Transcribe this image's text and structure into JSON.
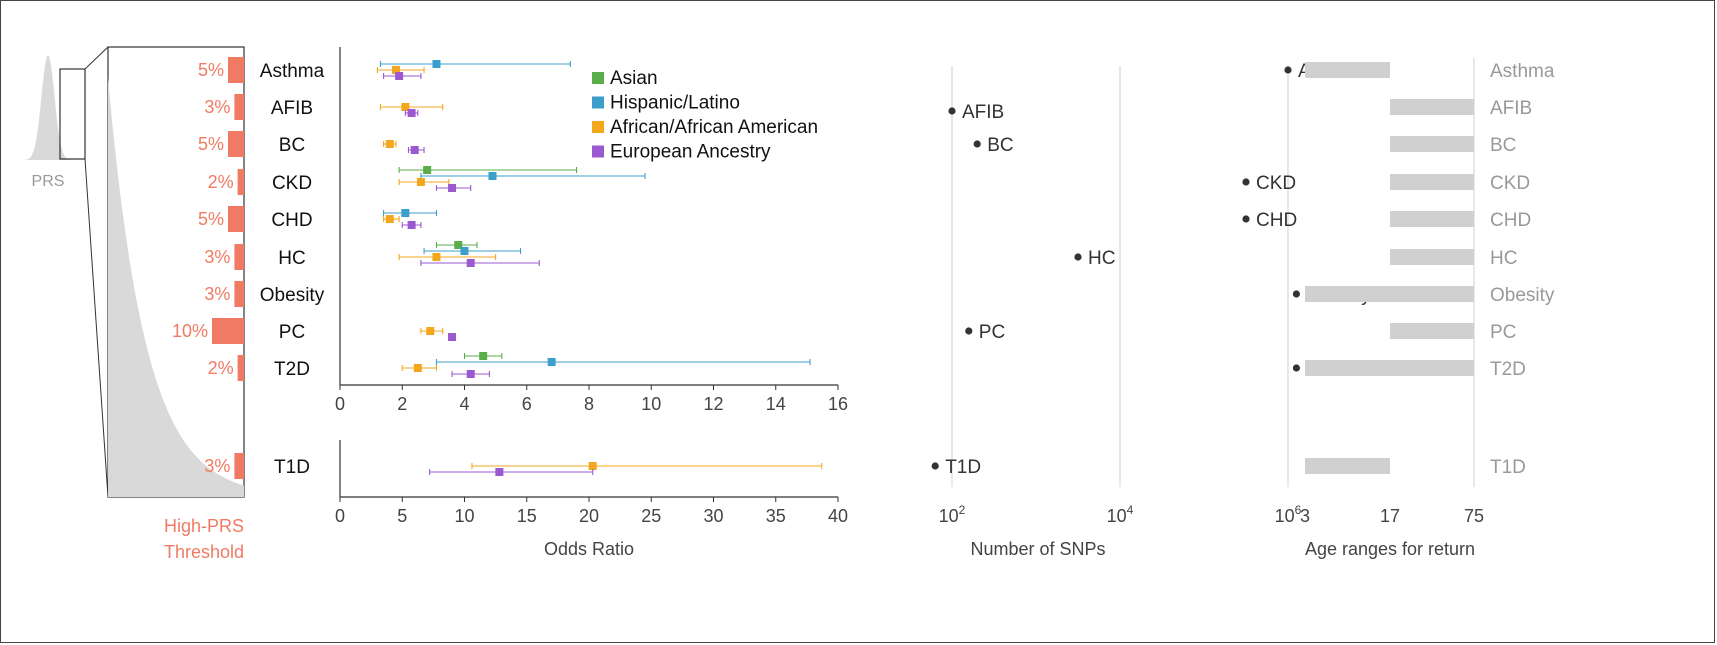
{
  "colors": {
    "threshold": "#f07a63",
    "gray_fill": "#d9d9d9",
    "gray_text": "#999999",
    "age_bar": "#d0d0d0",
    "axis": "#333333",
    "dot": "#333333",
    "grid": "#d9d9d9"
  },
  "distribution_panel": {
    "prs_label": "PRS",
    "threshold_label_line1": "High-PRS",
    "threshold_label_line2": "Threshold"
  },
  "legend": [
    {
      "name": "Asian",
      "color": "#5aae4a"
    },
    {
      "name": "Hispanic/Latino",
      "color": "#3c9fcb"
    },
    {
      "name": "African/African American",
      "color": "#f4a71c"
    },
    {
      "name": "European Ancestry",
      "color": "#9b59d0"
    }
  ],
  "chart_data": [
    {
      "type": "forest",
      "name": "odds_ratio_main",
      "xlim": [
        0,
        16
      ],
      "xticks": [
        0,
        2,
        4,
        6,
        8,
        10,
        12,
        14,
        16
      ],
      "categories": [
        "Asthma",
        "AFIB",
        "BC",
        "CKD",
        "CHD",
        "HC",
        "Obesity",
        "PC",
        "T2D"
      ],
      "thresholds": [
        "5%",
        "3%",
        "5%",
        "2%",
        "5%",
        "3%",
        "3%",
        "10%",
        "2%"
      ],
      "threshold_values": [
        5,
        3,
        5,
        2,
        5,
        3,
        3,
        10,
        2
      ],
      "series": [
        {
          "name": "Asian",
          "points": [
            null,
            null,
            null,
            {
              "or": 2.8,
              "lo": 1.9,
              "hi": 7.6
            },
            null,
            {
              "or": 3.8,
              "lo": 3.1,
              "hi": 4.4
            },
            null,
            null,
            {
              "or": 4.6,
              "lo": 4.0,
              "hi": 5.2
            }
          ]
        },
        {
          "name": "Hispanic/Latino",
          "points": [
            {
              "or": 3.1,
              "lo": 1.3,
              "hi": 7.4
            },
            null,
            null,
            {
              "or": 4.9,
              "lo": 2.6,
              "hi": 9.8
            },
            {
              "or": 2.1,
              "lo": 1.4,
              "hi": 3.1
            },
            {
              "or": 4.0,
              "lo": 2.7,
              "hi": 5.8
            },
            null,
            null,
            {
              "or": 6.8,
              "lo": 3.1,
              "hi": 15.1
            }
          ]
        },
        {
          "name": "African/African American",
          "points": [
            {
              "or": 1.8,
              "lo": 1.2,
              "hi": 2.7
            },
            {
              "or": 2.1,
              "lo": 1.3,
              "hi": 3.3
            },
            {
              "or": 1.6,
              "lo": 1.4,
              "hi": 1.8
            },
            {
              "or": 2.6,
              "lo": 1.9,
              "hi": 3.5
            },
            {
              "or": 1.6,
              "lo": 1.4,
              "hi": 1.9
            },
            {
              "or": 3.1,
              "lo": 1.9,
              "hi": 5.0
            },
            null,
            {
              "or": 2.9,
              "lo": 2.6,
              "hi": 3.3
            },
            {
              "or": 2.5,
              "lo": 2.0,
              "hi": 3.1
            }
          ]
        },
        {
          "name": "European Ancestry",
          "points": [
            {
              "or": 1.9,
              "lo": 1.4,
              "hi": 2.6
            },
            {
              "or": 2.3,
              "lo": 2.1,
              "hi": 2.5
            },
            {
              "or": 2.4,
              "lo": 2.2,
              "hi": 2.7
            },
            {
              "or": 3.6,
              "lo": 3.1,
              "hi": 4.2
            },
            {
              "or": 2.3,
              "lo": 2.0,
              "hi": 2.6
            },
            {
              "or": 4.2,
              "lo": 2.6,
              "hi": 6.4
            },
            null,
            {
              "or": 3.6,
              "lo": 3.5,
              "hi": 3.7
            },
            {
              "or": 4.2,
              "lo": 3.6,
              "hi": 4.8
            }
          ]
        }
      ]
    },
    {
      "type": "forest",
      "name": "odds_ratio_t1d",
      "xlim": [
        0,
        40
      ],
      "xticks": [
        0,
        5,
        10,
        15,
        20,
        25,
        30,
        35,
        40
      ],
      "xlabel": "Odds Ratio",
      "categories": [
        "T1D"
      ],
      "thresholds": [
        "3%"
      ],
      "threshold_values": [
        3
      ],
      "series": [
        {
          "name": "African/African American",
          "points": [
            {
              "or": 20.3,
              "lo": 10.6,
              "hi": 38.7
            }
          ]
        },
        {
          "name": "European Ancestry",
          "points": [
            {
              "or": 12.8,
              "lo": 7.2,
              "hi": 20.3
            }
          ]
        }
      ]
    },
    {
      "type": "scatter",
      "name": "number_of_snps",
      "xscale": "log10",
      "xlim_log10": [
        1.5,
        7
      ],
      "xtick_exponents": [
        2,
        4,
        6
      ],
      "xtick_base": "10",
      "gridlines_at_exponents": [
        2,
        4,
        6
      ],
      "xlabel": "Number of SNPs",
      "categories": [
        "Asthma",
        "AFIB",
        "BC",
        "CKD",
        "CHD",
        "HC",
        "Obesity",
        "PC",
        "T2D",
        "T1D"
      ],
      "log10_values": [
        6.0,
        2.0,
        2.3,
        5.5,
        5.5,
        3.5,
        6.1,
        2.2,
        6.1,
        1.8
      ]
    },
    {
      "type": "range",
      "name": "age_ranges",
      "xlabel": "Age ranges for return",
      "xtick_labels": [
        "3",
        "17",
        "75"
      ],
      "categories": [
        "Asthma",
        "AFIB",
        "BC",
        "CKD",
        "CHD",
        "HC",
        "Obesity",
        "PC",
        "T2D",
        "T1D"
      ],
      "ranges": [
        [
          3,
          17
        ],
        [
          17,
          75
        ],
        [
          17,
          75
        ],
        [
          17,
          75
        ],
        [
          17,
          75
        ],
        [
          17,
          75
        ],
        [
          3,
          75
        ],
        [
          17,
          75
        ],
        [
          3,
          75
        ],
        [
          3,
          17
        ]
      ]
    }
  ]
}
